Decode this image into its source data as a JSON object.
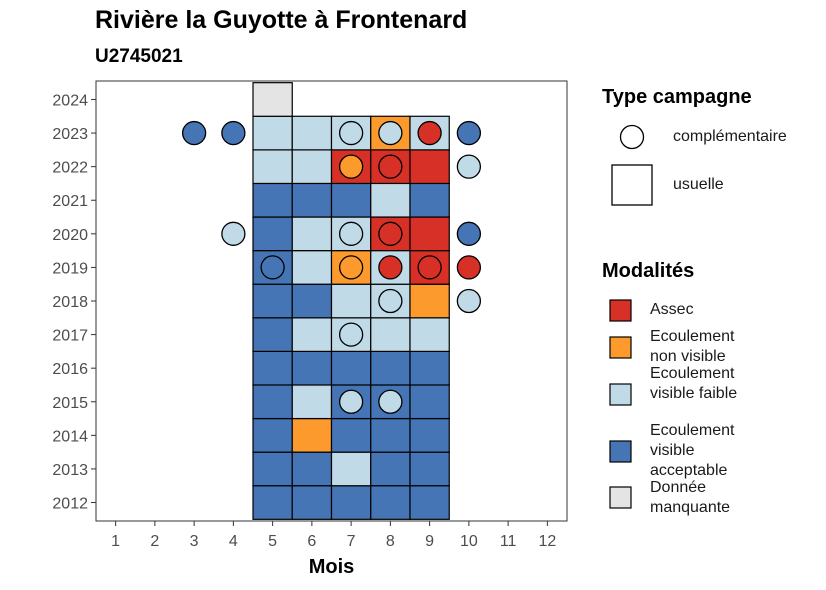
{
  "chart_data": {
    "type": "heatmap",
    "title": "Rivière la Guyotte à Frontenard",
    "subtitle": "U2745021",
    "xlabel": "Mois",
    "ylabel": "",
    "x_ticks": [
      "1",
      "2",
      "3",
      "4",
      "5",
      "6",
      "7",
      "8",
      "9",
      "10",
      "11",
      "12"
    ],
    "y_ticks": [
      "2012",
      "2013",
      "2014",
      "2015",
      "2016",
      "2017",
      "2018",
      "2019",
      "2020",
      "2021",
      "2022",
      "2023",
      "2024"
    ],
    "xlim": [
      0.5,
      12.5
    ],
    "ylim": [
      2011.45,
      2024.55
    ],
    "grid": false,
    "legend_shape": {
      "title": "Type campagne",
      "entries": [
        "complémentaire",
        "usuelle"
      ]
    },
    "legend_fill": {
      "title": "Modalités",
      "entries": [
        {
          "key": "assec",
          "label": "Assec",
          "color": "#d73027"
        },
        {
          "key": "non_visible",
          "label": "Ecoulement non visible",
          "color": "#fd9a2e"
        },
        {
          "key": "faible",
          "label": "Ecoulement visible faible",
          "color": "#c1dae8"
        },
        {
          "key": "acceptable",
          "label": "Ecoulement visible acceptable",
          "color": "#4575b4"
        },
        {
          "key": "manquante",
          "label": "Donnée manquante",
          "color": "#e4e4e4"
        }
      ]
    },
    "usuelle": [
      {
        "year": 2012,
        "month": 5,
        "value": "acceptable"
      },
      {
        "year": 2012,
        "month": 6,
        "value": "acceptable"
      },
      {
        "year": 2012,
        "month": 7,
        "value": "acceptable"
      },
      {
        "year": 2012,
        "month": 8,
        "value": "acceptable"
      },
      {
        "year": 2012,
        "month": 9,
        "value": "acceptable"
      },
      {
        "year": 2013,
        "month": 5,
        "value": "acceptable"
      },
      {
        "year": 2013,
        "month": 6,
        "value": "acceptable"
      },
      {
        "year": 2013,
        "month": 7,
        "value": "faible"
      },
      {
        "year": 2013,
        "month": 8,
        "value": "acceptable"
      },
      {
        "year": 2013,
        "month": 9,
        "value": "acceptable"
      },
      {
        "year": 2014,
        "month": 5,
        "value": "acceptable"
      },
      {
        "year": 2014,
        "month": 6,
        "value": "non_visible"
      },
      {
        "year": 2014,
        "month": 7,
        "value": "acceptable"
      },
      {
        "year": 2014,
        "month": 8,
        "value": "acceptable"
      },
      {
        "year": 2014,
        "month": 9,
        "value": "acceptable"
      },
      {
        "year": 2015,
        "month": 5,
        "value": "acceptable"
      },
      {
        "year": 2015,
        "month": 6,
        "value": "faible"
      },
      {
        "year": 2015,
        "month": 7,
        "value": "acceptable"
      },
      {
        "year": 2015,
        "month": 8,
        "value": "acceptable"
      },
      {
        "year": 2015,
        "month": 9,
        "value": "acceptable"
      },
      {
        "year": 2016,
        "month": 5,
        "value": "acceptable"
      },
      {
        "year": 2016,
        "month": 6,
        "value": "acceptable"
      },
      {
        "year": 2016,
        "month": 7,
        "value": "acceptable"
      },
      {
        "year": 2016,
        "month": 8,
        "value": "acceptable"
      },
      {
        "year": 2016,
        "month": 9,
        "value": "acceptable"
      },
      {
        "year": 2017,
        "month": 5,
        "value": "acceptable"
      },
      {
        "year": 2017,
        "month": 6,
        "value": "faible"
      },
      {
        "year": 2017,
        "month": 7,
        "value": "faible"
      },
      {
        "year": 2017,
        "month": 8,
        "value": "faible"
      },
      {
        "year": 2017,
        "month": 9,
        "value": "faible"
      },
      {
        "year": 2018,
        "month": 5,
        "value": "acceptable"
      },
      {
        "year": 2018,
        "month": 6,
        "value": "acceptable"
      },
      {
        "year": 2018,
        "month": 7,
        "value": "faible"
      },
      {
        "year": 2018,
        "month": 8,
        "value": "faible"
      },
      {
        "year": 2018,
        "month": 9,
        "value": "non_visible"
      },
      {
        "year": 2019,
        "month": 5,
        "value": "acceptable"
      },
      {
        "year": 2019,
        "month": 6,
        "value": "faible"
      },
      {
        "year": 2019,
        "month": 7,
        "value": "non_visible"
      },
      {
        "year": 2019,
        "month": 8,
        "value": "faible"
      },
      {
        "year": 2019,
        "month": 9,
        "value": "assec"
      },
      {
        "year": 2020,
        "month": 5,
        "value": "acceptable"
      },
      {
        "year": 2020,
        "month": 6,
        "value": "faible"
      },
      {
        "year": 2020,
        "month": 7,
        "value": "faible"
      },
      {
        "year": 2020,
        "month": 8,
        "value": "assec"
      },
      {
        "year": 2020,
        "month": 9,
        "value": "assec"
      },
      {
        "year": 2021,
        "month": 5,
        "value": "acceptable"
      },
      {
        "year": 2021,
        "month": 6,
        "value": "acceptable"
      },
      {
        "year": 2021,
        "month": 7,
        "value": "acceptable"
      },
      {
        "year": 2021,
        "month": 8,
        "value": "faible"
      },
      {
        "year": 2021,
        "month": 9,
        "value": "acceptable"
      },
      {
        "year": 2022,
        "month": 5,
        "value": "faible"
      },
      {
        "year": 2022,
        "month": 6,
        "value": "faible"
      },
      {
        "year": 2022,
        "month": 7,
        "value": "assec"
      },
      {
        "year": 2022,
        "month": 8,
        "value": "assec"
      },
      {
        "year": 2022,
        "month": 9,
        "value": "assec"
      },
      {
        "year": 2023,
        "month": 5,
        "value": "faible"
      },
      {
        "year": 2023,
        "month": 6,
        "value": "faible"
      },
      {
        "year": 2023,
        "month": 7,
        "value": "faible"
      },
      {
        "year": 2023,
        "month": 8,
        "value": "non_visible"
      },
      {
        "year": 2023,
        "month": 9,
        "value": "faible"
      },
      {
        "year": 2024,
        "month": 5,
        "value": "manquante"
      }
    ],
    "complementaire": [
      {
        "year": 2015,
        "month": 7,
        "value": "faible"
      },
      {
        "year": 2015,
        "month": 8,
        "value": "faible"
      },
      {
        "year": 2017,
        "month": 7,
        "value": "faible"
      },
      {
        "year": 2018,
        "month": 8,
        "value": "faible"
      },
      {
        "year": 2018,
        "month": 10,
        "value": "faible"
      },
      {
        "year": 2019,
        "month": 5,
        "value": "acceptable"
      },
      {
        "year": 2019,
        "month": 7,
        "value": "non_visible"
      },
      {
        "year": 2019,
        "month": 8,
        "value": "assec"
      },
      {
        "year": 2019,
        "month": 9,
        "value": "assec"
      },
      {
        "year": 2019,
        "month": 10,
        "value": "assec"
      },
      {
        "year": 2020,
        "month": 4,
        "value": "faible"
      },
      {
        "year": 2020,
        "month": 7,
        "value": "faible"
      },
      {
        "year": 2020,
        "month": 8,
        "value": "assec"
      },
      {
        "year": 2020,
        "month": 10,
        "value": "acceptable"
      },
      {
        "year": 2022,
        "month": 7,
        "value": "non_visible"
      },
      {
        "year": 2022,
        "month": 8,
        "value": "assec"
      },
      {
        "year": 2022,
        "month": 10,
        "value": "faible"
      },
      {
        "year": 2023,
        "month": 3,
        "value": "acceptable"
      },
      {
        "year": 2023,
        "month": 4,
        "value": "acceptable"
      },
      {
        "year": 2023,
        "month": 7,
        "value": "faible"
      },
      {
        "year": 2023,
        "month": 8,
        "value": "faible"
      },
      {
        "year": 2023,
        "month": 9,
        "value": "assec"
      },
      {
        "year": 2023,
        "month": 10,
        "value": "acceptable"
      }
    ]
  }
}
